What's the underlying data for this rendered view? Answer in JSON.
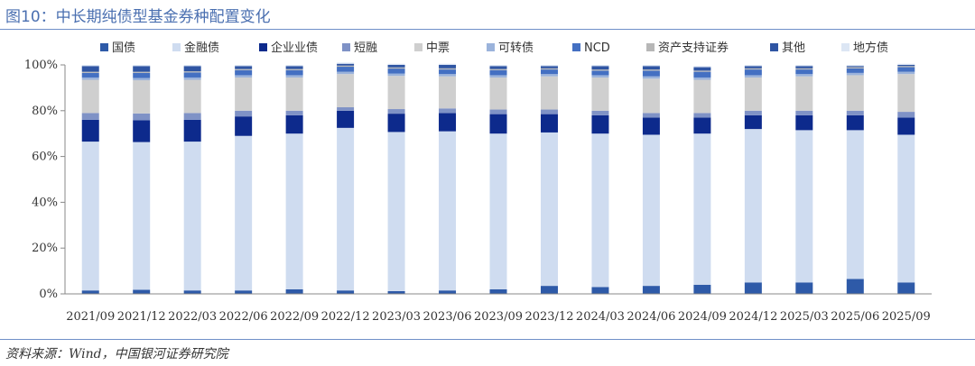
{
  "title": "图10：中长期纯债型基金券种配置变化",
  "source": "资料来源：Wind，中国银河证券研究院",
  "chart_data": {
    "type": "bar",
    "stacked": true,
    "title": "图10：中长期纯债型基金券种配置变化",
    "xlabel": "",
    "ylabel": "",
    "ylim": [
      0,
      100
    ],
    "yticks": [
      "0%",
      "20%",
      "40%",
      "60%",
      "80%",
      "100%"
    ],
    "legend_position": "top",
    "grid": false,
    "categories": [
      "2021/09",
      "2021/12",
      "2022/03",
      "2022/06",
      "2022/09",
      "2022/12",
      "2023/03",
      "2023/06",
      "2023/09",
      "2023/12",
      "2024/03",
      "2024/06",
      "2024/09",
      "2024/12",
      "2025/03",
      "2025/06",
      "2025/09"
    ],
    "series": [
      {
        "name": "国债",
        "color": "#2e5aa8",
        "values": [
          1.5,
          1.8,
          1.5,
          1.5,
          2.0,
          1.5,
          1.2,
          1.5,
          2.0,
          3.5,
          3.0,
          3.5,
          4.0,
          5.0,
          5.0,
          6.5,
          5.0
        ]
      },
      {
        "name": "金融债",
        "color": "#cfdcf0",
        "values": [
          65.0,
          64.5,
          65.0,
          67.5,
          68.0,
          71.0,
          69.5,
          69.5,
          68.0,
          67.0,
          67.0,
          66.0,
          66.0,
          67.0,
          66.5,
          65.0,
          64.5
        ]
      },
      {
        "name": "企业业债",
        "color": "#0d2a8c",
        "values": [
          9.5,
          9.5,
          9.5,
          8.5,
          8.0,
          7.5,
          8.0,
          8.0,
          8.5,
          8.0,
          8.0,
          7.5,
          7.0,
          6.0,
          6.5,
          6.5,
          7.5
        ]
      },
      {
        "name": "短融",
        "color": "#7f92c6",
        "values": [
          3.0,
          3.0,
          3.0,
          2.5,
          2.0,
          1.5,
          2.0,
          2.0,
          2.0,
          2.0,
          2.0,
          2.0,
          2.0,
          2.0,
          2.0,
          2.0,
          2.5
        ]
      },
      {
        "name": "中票",
        "color": "#cfcfcf",
        "values": [
          14.5,
          14.5,
          14.5,
          14.5,
          14.5,
          14.5,
          14.5,
          14.0,
          14.0,
          14.5,
          14.5,
          15.0,
          14.5,
          14.5,
          15.0,
          15.5,
          16.5
        ]
      },
      {
        "name": "可转债",
        "color": "#9bb3db",
        "values": [
          1.0,
          1.0,
          1.0,
          1.0,
          1.0,
          1.0,
          1.0,
          1.0,
          1.0,
          1.0,
          1.0,
          1.0,
          1.0,
          1.0,
          1.0,
          1.0,
          1.0
        ]
      },
      {
        "name": "NCD",
        "color": "#4470c2",
        "values": [
          2.0,
          2.2,
          2.2,
          2.2,
          2.2,
          2.2,
          2.2,
          2.0,
          2.2,
          2.0,
          2.0,
          2.5,
          2.5,
          2.5,
          2.0,
          2.0,
          2.0
        ]
      },
      {
        "name": "资产支持证券",
        "color": "#b7b7b7",
        "values": [
          0.5,
          0.5,
          0.5,
          0.5,
          0.5,
          0.5,
          0.5,
          0.5,
          0.5,
          0.5,
          0.5,
          0.5,
          0.5,
          0.5,
          0.5,
          0.5,
          0.5
        ]
      },
      {
        "name": "其他",
        "color": "#2f55a3",
        "values": [
          2.5,
          2.5,
          2.3,
          1.3,
          1.3,
          0.8,
          1.1,
          1.5,
          1.3,
          1.0,
          1.5,
          1.5,
          1.5,
          1.0,
          1.0,
          0.5,
          0.5
        ]
      },
      {
        "name": "地方债",
        "color": "#dce6f4",
        "values": [
          0.5,
          0.5,
          0.5,
          0.5,
          0.5,
          0.5,
          0.5,
          0.5,
          0.5,
          0.5,
          0.5,
          0.5,
          0.5,
          0.5,
          0.5,
          0.5,
          0.5
        ]
      }
    ]
  }
}
